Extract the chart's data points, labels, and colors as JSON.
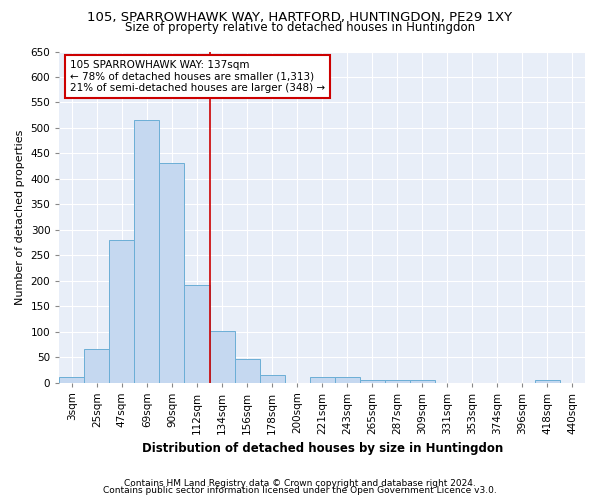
{
  "title1": "105, SPARROWHAWK WAY, HARTFORD, HUNTINGDON, PE29 1XY",
  "title2": "Size of property relative to detached houses in Huntingdon",
  "xlabel": "Distribution of detached houses by size in Huntingdon",
  "ylabel": "Number of detached properties",
  "categories": [
    "3sqm",
    "25sqm",
    "47sqm",
    "69sqm",
    "90sqm",
    "112sqm",
    "134sqm",
    "156sqm",
    "178sqm",
    "200sqm",
    "221sqm",
    "243sqm",
    "265sqm",
    "287sqm",
    "309sqm",
    "331sqm",
    "353sqm",
    "374sqm",
    "396sqm",
    "418sqm",
    "440sqm"
  ],
  "values": [
    10,
    65,
    280,
    515,
    432,
    192,
    102,
    46,
    15,
    0,
    11,
    10,
    5,
    5,
    5,
    0,
    0,
    0,
    0,
    5,
    0
  ],
  "bar_color": "#c5d8f0",
  "bar_edge_color": "#6baed6",
  "property_line_x": 5.5,
  "annotation_lines": [
    "105 SPARROWHAWK WAY: 137sqm",
    "← 78% of detached houses are smaller (1,313)",
    "21% of semi-detached houses are larger (348) →"
  ],
  "annotation_box_color": "#ffffff",
  "annotation_box_edge": "#cc0000",
  "vline_color": "#cc0000",
  "ylim": [
    0,
    650
  ],
  "yticks": [
    0,
    50,
    100,
    150,
    200,
    250,
    300,
    350,
    400,
    450,
    500,
    550,
    600,
    650
  ],
  "footer1": "Contains HM Land Registry data © Crown copyright and database right 2024.",
  "footer2": "Contains public sector information licensed under the Open Government Licence v3.0.",
  "bg_color": "#ffffff",
  "plot_bg_color": "#e8eef8",
  "grid_color": "#ffffff",
  "title1_fontsize": 9.5,
  "title2_fontsize": 8.5,
  "xlabel_fontsize": 8.5,
  "ylabel_fontsize": 8,
  "tick_fontsize": 7.5,
  "ann_fontsize": 7.5,
  "footer_fontsize": 6.5
}
